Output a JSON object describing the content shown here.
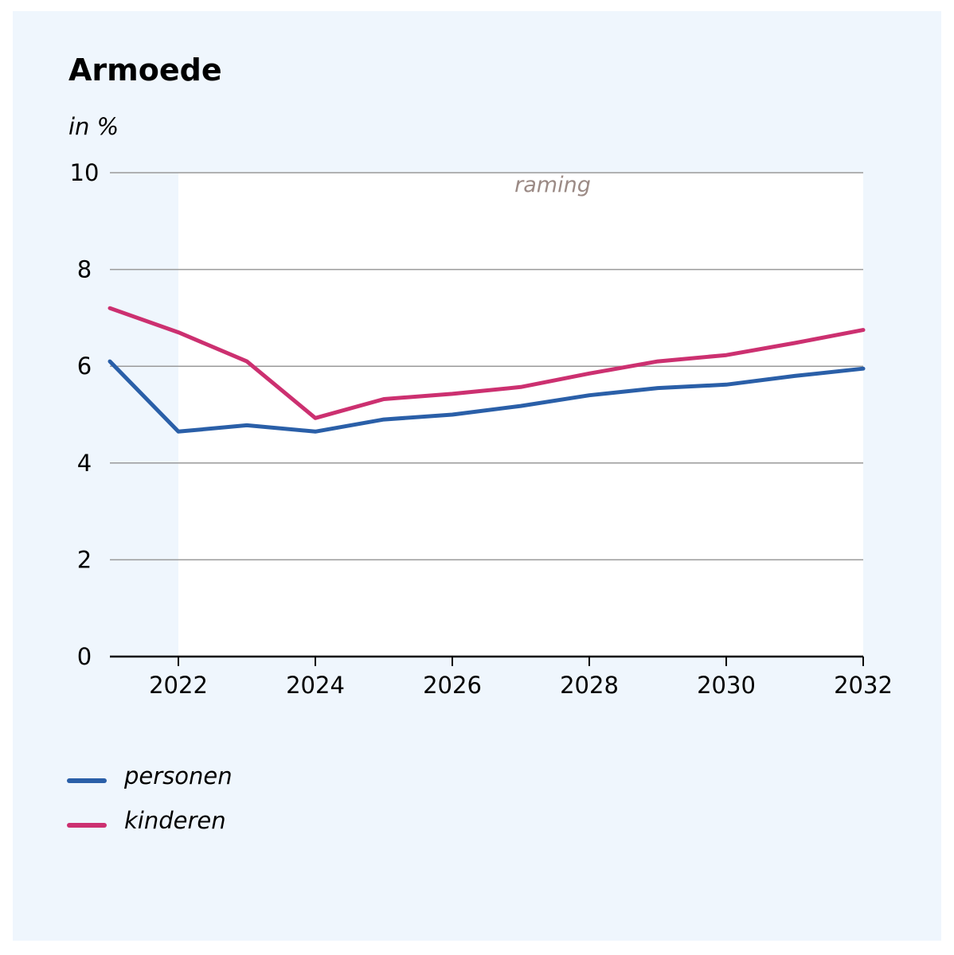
{
  "chart_data": {
    "type": "line",
    "title": "Armoede",
    "ylabel": "in %",
    "xlabel": "",
    "x": [
      2021,
      2022,
      2023,
      2024,
      2025,
      2026,
      2027,
      2028,
      2029,
      2030,
      2031,
      2032
    ],
    "series": [
      {
        "name": "personen",
        "color": "#2a5fa8",
        "values": [
          6.1,
          4.65,
          4.78,
          4.65,
          4.9,
          5.0,
          5.18,
          5.4,
          5.55,
          5.62,
          5.8,
          5.95
        ]
      },
      {
        "name": "kinderen",
        "color": "#cc3070",
        "values": [
          7.2,
          6.7,
          6.1,
          4.93,
          5.32,
          5.43,
          5.57,
          5.85,
          6.1,
          6.23,
          6.48,
          6.75
        ]
      }
    ],
    "xlim": [
      2021,
      2032
    ],
    "ylim": [
      0,
      10
    ],
    "yticks": [
      0,
      2,
      4,
      6,
      8,
      10
    ],
    "xticks": [
      2022,
      2024,
      2026,
      2028,
      2030,
      2032
    ],
    "grid": true,
    "legend_position": "bottom-left",
    "annotation": {
      "text": "raming",
      "color": "#9b8a85",
      "from": 2022,
      "to": 2032
    },
    "colors": {
      "background": "#eff6fd",
      "forecast_band": "#ffffff",
      "grid": "#9a9a9a",
      "axis": "#000000"
    }
  }
}
